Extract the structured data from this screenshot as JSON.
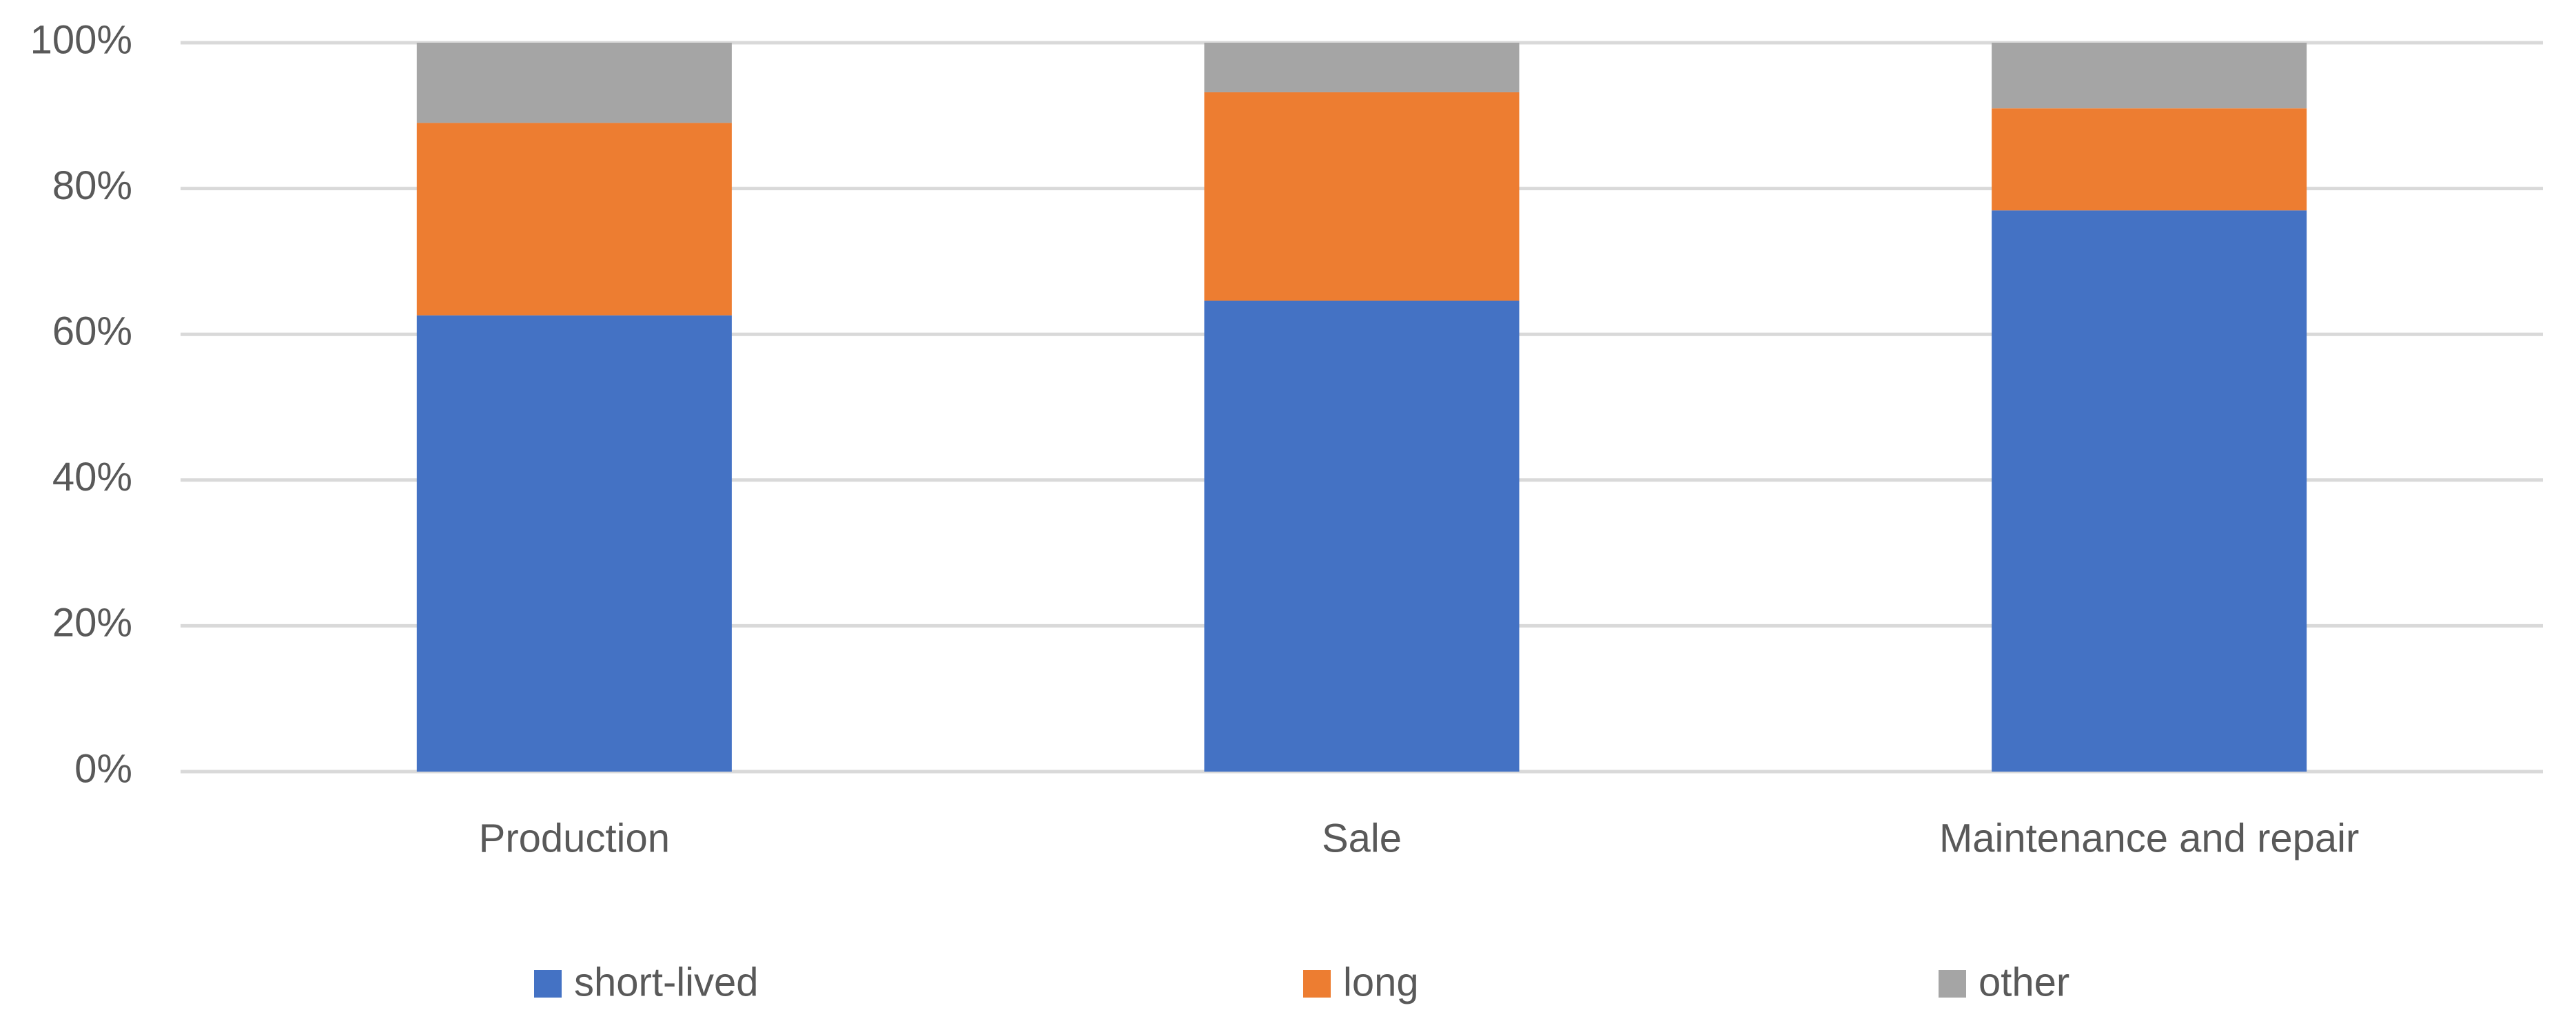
{
  "chart_data": {
    "type": "stacked_bar",
    "categories": [
      "Production",
      "Sale",
      "Maintenance and repair"
    ],
    "series": [
      {
        "name": "short-lived",
        "color": "#4472c4",
        "values": [
          62.6,
          64.6,
          77.0
        ]
      },
      {
        "name": "long",
        "color": "#ed7d31",
        "values": [
          26.4,
          28.6,
          14.0
        ]
      },
      {
        "name": "other",
        "color": "#a5a5a5",
        "values": [
          11.0,
          6.8,
          9.0
        ]
      }
    ],
    "ylim": [
      0,
      100
    ],
    "yticks": [
      {
        "value": 0,
        "label": "0%"
      },
      {
        "value": 20,
        "label": "20%"
      },
      {
        "value": 40,
        "label": "40%"
      },
      {
        "value": 60,
        "label": "60%"
      },
      {
        "value": 80,
        "label": "80%"
      },
      {
        "value": 100,
        "label": "100%"
      }
    ],
    "grid": true,
    "legend": "bottom"
  }
}
